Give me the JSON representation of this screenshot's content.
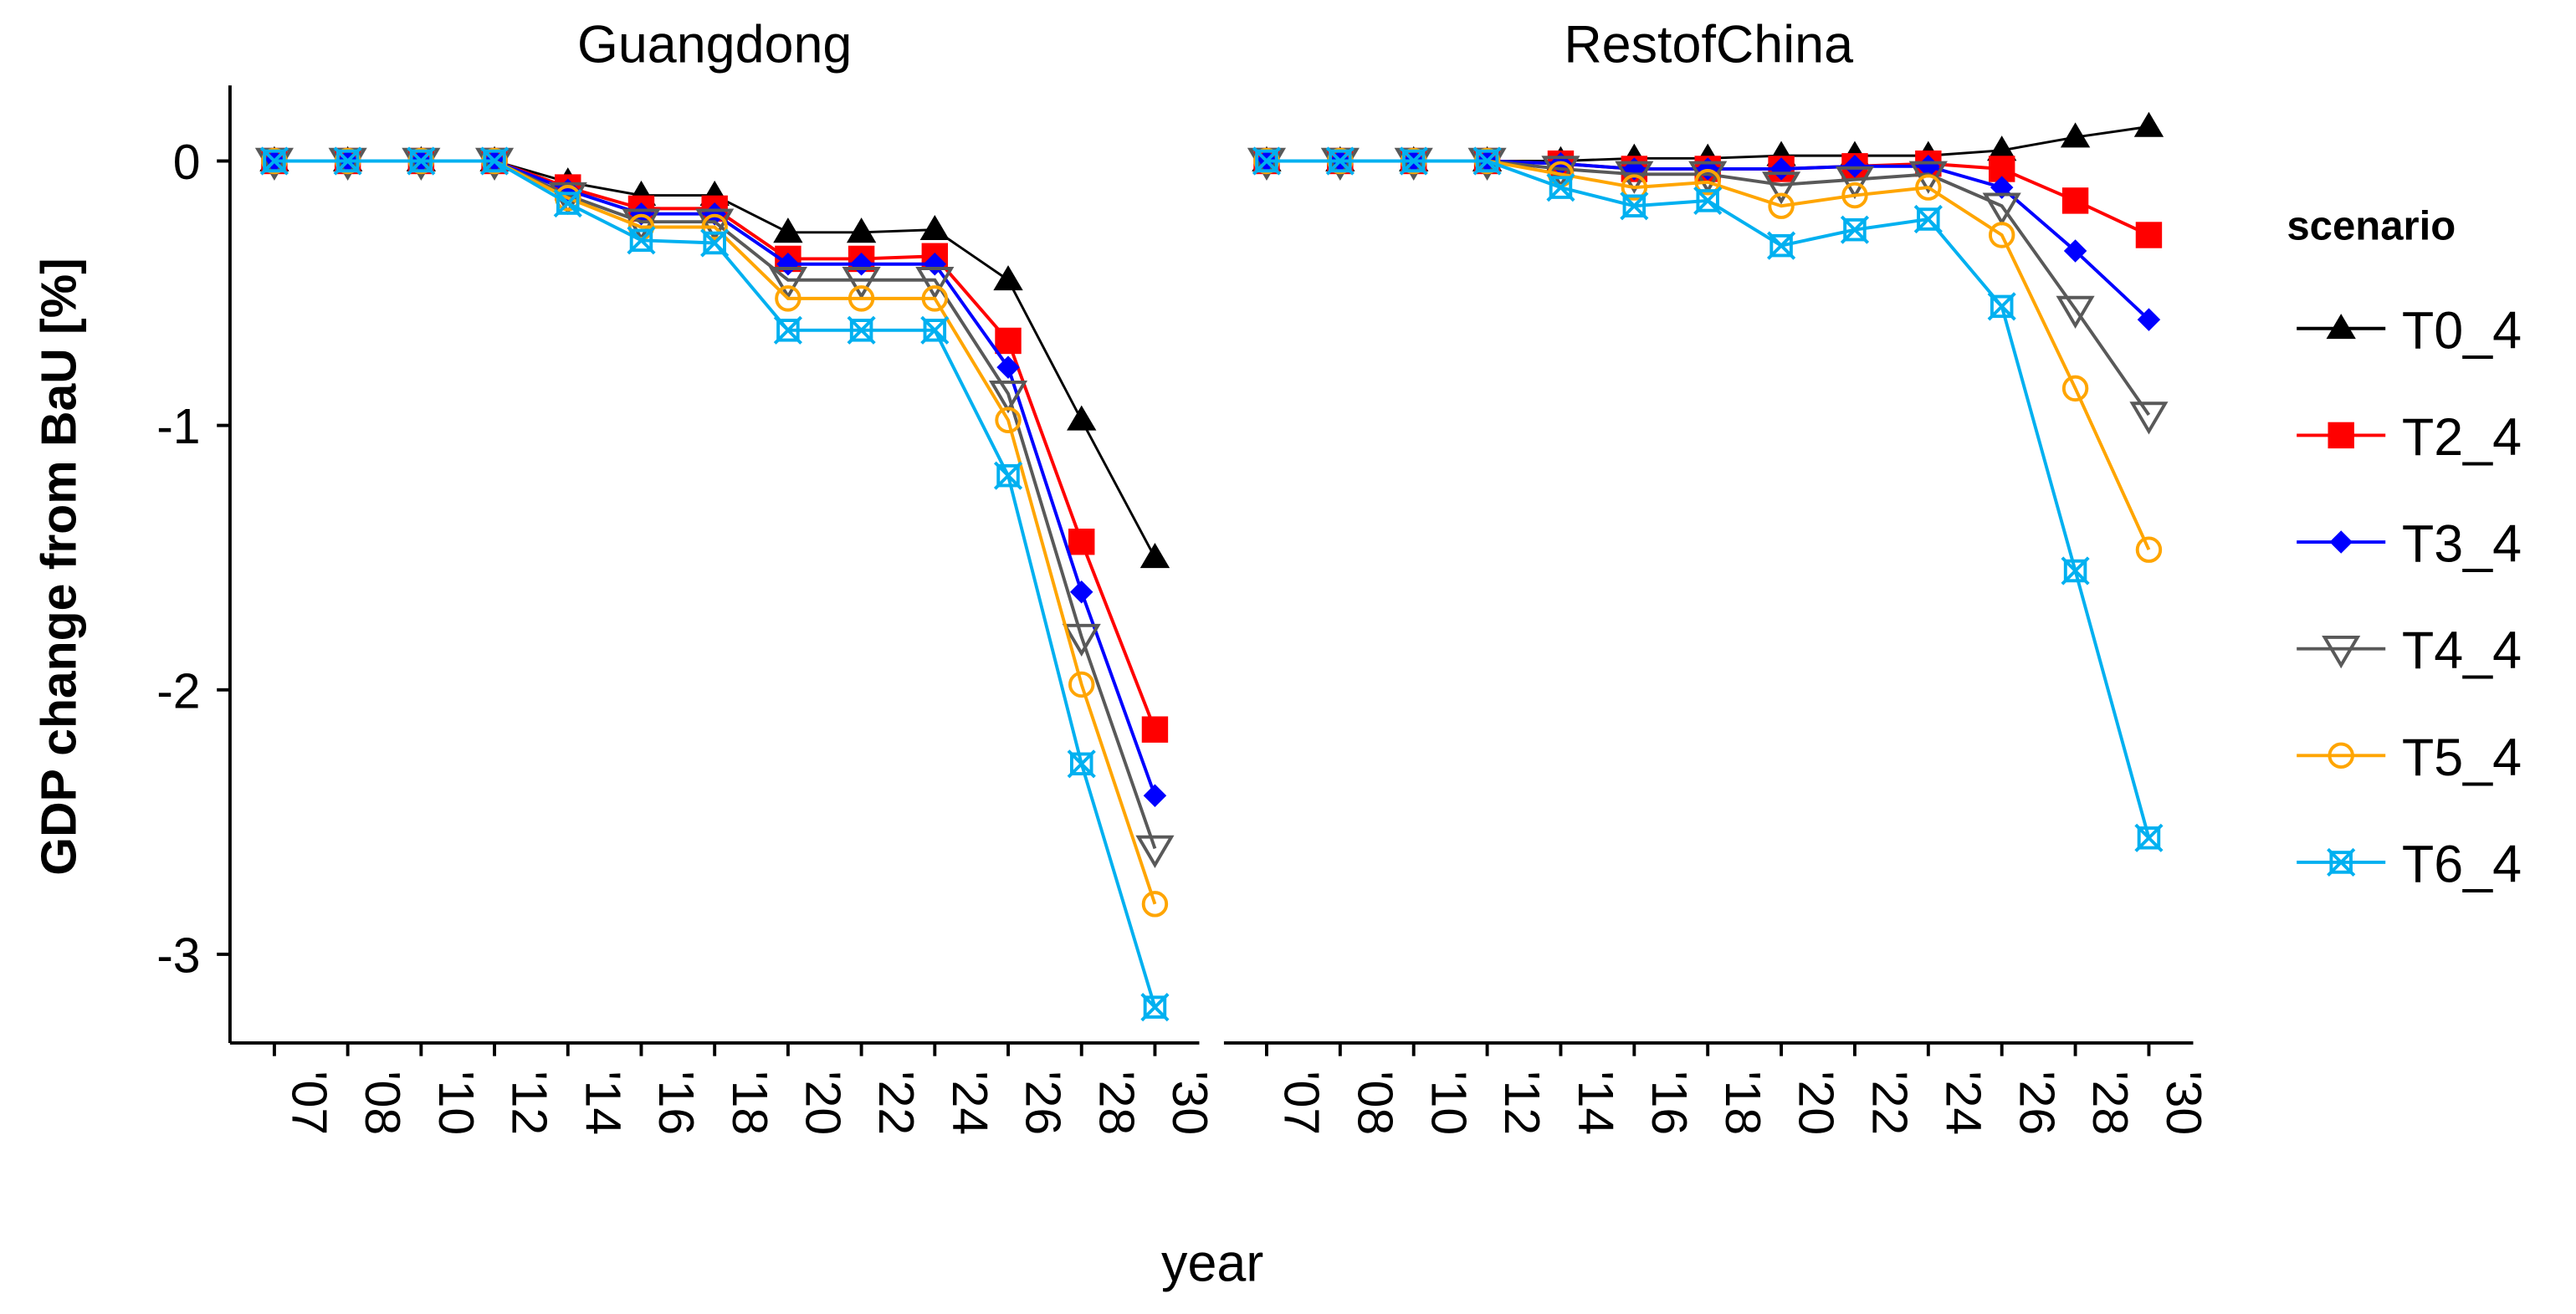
{
  "chart_data": {
    "type": "line",
    "ylabel": "GDP change from BaU [%]",
    "xlabel": "year",
    "ylim": [
      -3.3,
      0.3
    ],
    "yticks": [
      0,
      -1,
      -2,
      -3
    ],
    "ytick_labels": [
      "0",
      "-1",
      "-2",
      "-3"
    ],
    "categories": [
      "'07",
      "'08",
      "'10",
      "'12",
      "'14",
      "'16",
      "'18",
      "'20",
      "'22",
      "'24",
      "'26",
      "'28",
      "'30"
    ],
    "legend": {
      "title": "scenario",
      "placement": "right"
    },
    "series_styles": [
      {
        "name": "T0_4",
        "color": "#000000",
        "marker": "triangle-up-filled"
      },
      {
        "name": "T2_4",
        "color": "#FF0000",
        "marker": "square-filled"
      },
      {
        "name": "T3_4",
        "color": "#0000FF",
        "marker": "diamond-filled"
      },
      {
        "name": "T4_4",
        "color": "#595959",
        "marker": "triangle-down-open"
      },
      {
        "name": "T5_4",
        "color": "#FFA500",
        "marker": "circle-open"
      },
      {
        "name": "T6_4",
        "color": "#00B0F0",
        "marker": "square-x-open"
      }
    ],
    "panels": [
      {
        "title": "Guangdong",
        "series": [
          {
            "name": "T0_4",
            "values": [
              0,
              0,
              0,
              0,
              -0.08,
              -0.13,
              -0.13,
              -0.27,
              -0.27,
              -0.26,
              -0.45,
              -0.98,
              -1.5
            ]
          },
          {
            "name": "T2_4",
            "values": [
              0,
              0,
              0,
              0,
              -0.1,
              -0.18,
              -0.18,
              -0.37,
              -0.37,
              -0.36,
              -0.68,
              -1.44,
              -2.15
            ]
          },
          {
            "name": "T3_4",
            "values": [
              0,
              0,
              0,
              0,
              -0.11,
              -0.2,
              -0.2,
              -0.39,
              -0.39,
              -0.39,
              -0.78,
              -1.63,
              -2.4
            ]
          },
          {
            "name": "T4_4",
            "values": [
              0,
              0,
              0,
              0,
              -0.13,
              -0.23,
              -0.23,
              -0.45,
              -0.45,
              -0.45,
              -0.88,
              -1.8,
              -2.6
            ]
          },
          {
            "name": "T5_4",
            "values": [
              0,
              0,
              0,
              0,
              -0.14,
              -0.25,
              -0.25,
              -0.52,
              -0.52,
              -0.52,
              -0.98,
              -1.98,
              -2.81
            ]
          },
          {
            "name": "T6_4",
            "values": [
              0,
              0,
              0,
              0,
              -0.16,
              -0.3,
              -0.31,
              -0.64,
              -0.64,
              -0.64,
              -1.19,
              -2.28,
              -3.2
            ]
          }
        ]
      },
      {
        "title": "RestofChina",
        "series": [
          {
            "name": "T0_4",
            "values": [
              0,
              0,
              0,
              0,
              0.0,
              0.01,
              0.01,
              0.02,
              0.02,
              0.02,
              0.04,
              0.09,
              0.13
            ]
          },
          {
            "name": "T2_4",
            "values": [
              0,
              0,
              0,
              0,
              -0.01,
              -0.03,
              -0.03,
              -0.03,
              -0.02,
              -0.01,
              -0.03,
              -0.15,
              -0.28
            ]
          },
          {
            "name": "T3_4",
            "values": [
              0,
              0,
              0,
              0,
              -0.01,
              -0.03,
              -0.03,
              -0.03,
              -0.02,
              -0.02,
              -0.1,
              -0.34,
              -0.6
            ]
          },
          {
            "name": "T4_4",
            "values": [
              0,
              0,
              0,
              0,
              -0.03,
              -0.05,
              -0.05,
              -0.09,
              -0.07,
              -0.05,
              -0.17,
              -0.56,
              -0.96
            ]
          },
          {
            "name": "T5_4",
            "values": [
              0,
              0,
              0,
              0,
              -0.05,
              -0.1,
              -0.08,
              -0.17,
              -0.13,
              -0.1,
              -0.28,
              -0.86,
              -1.47
            ]
          },
          {
            "name": "T6_4",
            "values": [
              0,
              0,
              0,
              0,
              -0.1,
              -0.17,
              -0.15,
              -0.32,
              -0.26,
              -0.22,
              -0.55,
              -1.55,
              -2.56
            ]
          }
        ]
      }
    ]
  }
}
